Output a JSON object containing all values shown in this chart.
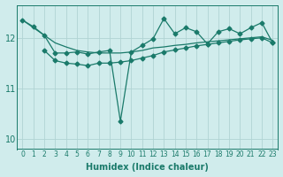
{
  "line_upper_x": [
    0,
    1,
    2,
    3,
    4,
    5,
    6,
    7,
    8,
    9,
    10,
    11,
    12,
    13,
    14,
    15,
    16,
    17,
    18,
    19,
    20,
    21,
    22,
    23
  ],
  "line_upper_y": [
    12.35,
    12.2,
    12.05,
    11.9,
    11.82,
    11.75,
    11.72,
    11.7,
    11.7,
    11.7,
    11.72,
    11.75,
    11.8,
    11.82,
    11.85,
    11.87,
    11.9,
    11.92,
    11.94,
    11.96,
    11.98,
    12.0,
    12.02,
    11.95
  ],
  "line_jagged_x": [
    0,
    1,
    2,
    3,
    4,
    5,
    6,
    7,
    8,
    9,
    10,
    11,
    12,
    13,
    14,
    15,
    16,
    17,
    18,
    19,
    20,
    21,
    22,
    23
  ],
  "line_jagged_y": [
    12.35,
    12.22,
    12.05,
    11.7,
    11.7,
    11.72,
    11.68,
    11.72,
    11.75,
    10.35,
    11.72,
    11.85,
    11.98,
    12.38,
    12.08,
    12.2,
    12.12,
    11.88,
    12.12,
    12.18,
    12.08,
    12.2,
    12.3,
    11.9
  ],
  "line_lower_x": [
    2,
    3,
    4,
    5,
    6,
    7,
    8,
    9,
    10,
    11,
    12,
    13,
    14,
    15,
    16,
    17,
    18,
    19,
    20,
    21,
    22,
    23
  ],
  "line_lower_y": [
    11.75,
    11.55,
    11.5,
    11.48,
    11.45,
    11.5,
    11.5,
    11.52,
    11.55,
    11.6,
    11.65,
    11.72,
    11.76,
    11.8,
    11.84,
    11.87,
    11.9,
    11.93,
    11.96,
    11.98,
    12.0,
    11.9
  ],
  "color": "#1a7a6a",
  "bg_color": "#d0ecec",
  "grid_color": "#b0d4d4",
  "xlabel": "Humidex (Indice chaleur)",
  "yticks": [
    10,
    11,
    12
  ],
  "ylim": [
    9.8,
    12.65
  ],
  "xlim": [
    -0.5,
    23.5
  ],
  "xticks": [
    0,
    1,
    2,
    3,
    4,
    5,
    6,
    7,
    8,
    9,
    10,
    11,
    12,
    13,
    14,
    15,
    16,
    17,
    18,
    19,
    20,
    21,
    22,
    23
  ]
}
